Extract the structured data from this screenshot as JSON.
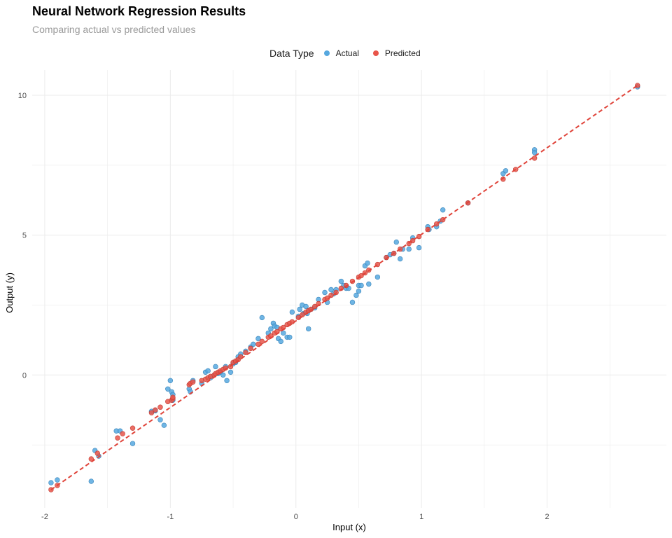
{
  "chart_data": {
    "type": "scatter",
    "title": "Neural Network Regression Results",
    "subtitle": "Comparing actual vs predicted values",
    "xlabel": "Input (x)",
    "ylabel": "Output (y)",
    "xlim": [
      -2.1,
      2.95
    ],
    "ylim": [
      -4.75,
      10.9
    ],
    "x_ticks": [
      -2,
      -1,
      0,
      1,
      2
    ],
    "y_ticks": [
      0,
      5,
      10
    ],
    "grid": true,
    "legend": {
      "title": "Data Type",
      "placement": "top-center",
      "entries": [
        "Actual",
        "Predicted"
      ]
    },
    "colors": {
      "actual": "#56a8df",
      "predicted": "#e8554a",
      "line": "#e0443a",
      "grid": "#ebebeb"
    },
    "series": [
      {
        "name": "Actual",
        "points": [
          [
            -1.95,
            -3.85
          ],
          [
            -1.9,
            -3.75
          ],
          [
            -1.63,
            -3.8
          ],
          [
            -1.6,
            -2.7
          ],
          [
            -1.57,
            -2.9
          ],
          [
            -1.43,
            -2.0
          ],
          [
            -1.4,
            -2.0
          ],
          [
            -1.3,
            -2.45
          ],
          [
            -1.15,
            -1.3
          ],
          [
            -1.12,
            -1.28
          ],
          [
            -1.08,
            -1.6
          ],
          [
            -1.05,
            -1.8
          ],
          [
            -1.0,
            -0.2
          ],
          [
            -0.99,
            -0.6
          ],
          [
            -0.98,
            -0.9
          ],
          [
            -1.02,
            -0.5
          ],
          [
            -0.98,
            -0.7
          ],
          [
            -0.85,
            -0.5
          ],
          [
            -0.84,
            -0.6
          ],
          [
            -0.82,
            -0.2
          ],
          [
            -0.75,
            -0.3
          ],
          [
            -0.72,
            0.1
          ],
          [
            -0.7,
            0.15
          ],
          [
            -0.68,
            -0.1
          ],
          [
            -0.65,
            0.0
          ],
          [
            -0.64,
            0.3
          ],
          [
            -0.62,
            0.05
          ],
          [
            -0.6,
            0.1
          ],
          [
            -0.58,
            0.0
          ],
          [
            -0.56,
            0.3
          ],
          [
            -0.55,
            -0.2
          ],
          [
            -0.52,
            0.1
          ],
          [
            -0.5,
            0.4
          ],
          [
            -0.48,
            0.45
          ],
          [
            -0.46,
            0.65
          ],
          [
            -0.44,
            0.75
          ],
          [
            -0.4,
            0.85
          ],
          [
            -0.36,
            1.0
          ],
          [
            -0.34,
            1.1
          ],
          [
            -0.3,
            1.3
          ],
          [
            -0.27,
            2.05
          ],
          [
            -0.22,
            1.5
          ],
          [
            -0.2,
            1.65
          ],
          [
            -0.18,
            1.85
          ],
          [
            -0.17,
            1.75
          ],
          [
            -0.15,
            1.7
          ],
          [
            -0.14,
            1.3
          ],
          [
            -0.12,
            1.2
          ],
          [
            -0.1,
            1.5
          ],
          [
            -0.07,
            1.35
          ],
          [
            -0.05,
            1.35
          ],
          [
            -0.03,
            2.25
          ],
          [
            0.02,
            2.1
          ],
          [
            0.03,
            2.35
          ],
          [
            0.05,
            2.5
          ],
          [
            0.06,
            2.2
          ],
          [
            0.08,
            2.45
          ],
          [
            0.09,
            2.2
          ],
          [
            0.1,
            2.3
          ],
          [
            0.1,
            1.65
          ],
          [
            0.12,
            2.35
          ],
          [
            0.15,
            2.4
          ],
          [
            0.18,
            2.7
          ],
          [
            0.23,
            2.95
          ],
          [
            0.25,
            2.6
          ],
          [
            0.28,
            3.05
          ],
          [
            0.3,
            2.9
          ],
          [
            0.32,
            3.05
          ],
          [
            0.36,
            3.35
          ],
          [
            0.38,
            3.2
          ],
          [
            0.4,
            3.1
          ],
          [
            0.42,
            3.1
          ],
          [
            0.45,
            2.6
          ],
          [
            0.48,
            2.85
          ],
          [
            0.5,
            3.0
          ],
          [
            0.5,
            3.2
          ],
          [
            0.52,
            3.2
          ],
          [
            0.55,
            3.9
          ],
          [
            0.57,
            4.0
          ],
          [
            0.58,
            3.25
          ],
          [
            0.65,
            3.5
          ],
          [
            0.72,
            4.2
          ],
          [
            0.75,
            4.3
          ],
          [
            0.78,
            4.35
          ],
          [
            0.8,
            4.75
          ],
          [
            0.83,
            4.15
          ],
          [
            0.85,
            4.5
          ],
          [
            0.9,
            4.5
          ],
          [
            0.93,
            4.9
          ],
          [
            0.98,
            4.55
          ],
          [
            1.05,
            5.3
          ],
          [
            1.06,
            5.2
          ],
          [
            1.12,
            5.3
          ],
          [
            1.15,
            5.5
          ],
          [
            1.17,
            5.9
          ],
          [
            1.37,
            6.15
          ],
          [
            1.65,
            7.2
          ],
          [
            1.67,
            7.3
          ],
          [
            1.9,
            8.05
          ],
          [
            1.9,
            7.95
          ],
          [
            2.72,
            10.3
          ]
        ]
      },
      {
        "name": "Predicted",
        "points": [
          [
            -1.95,
            -4.1
          ],
          [
            -1.9,
            -3.95
          ],
          [
            -1.63,
            -3.0
          ],
          [
            -1.58,
            -2.8
          ],
          [
            -1.42,
            -2.25
          ],
          [
            -1.38,
            -2.1
          ],
          [
            -1.3,
            -1.9
          ],
          [
            -1.15,
            -1.35
          ],
          [
            -1.12,
            -1.25
          ],
          [
            -1.08,
            -1.15
          ],
          [
            -1.02,
            -0.95
          ],
          [
            -0.99,
            -0.9
          ],
          [
            -0.98,
            -0.85
          ],
          [
            -0.98,
            -0.8
          ],
          [
            -0.85,
            -0.35
          ],
          [
            -0.84,
            -0.3
          ],
          [
            -0.82,
            -0.25
          ],
          [
            -0.75,
            -0.2
          ],
          [
            -0.72,
            -0.15
          ],
          [
            -0.7,
            -0.1
          ],
          [
            -0.68,
            -0.05
          ],
          [
            -0.65,
            0.0
          ],
          [
            -0.64,
            0.05
          ],
          [
            -0.62,
            0.1
          ],
          [
            -0.6,
            0.15
          ],
          [
            -0.58,
            0.2
          ],
          [
            -0.56,
            0.25
          ],
          [
            -0.52,
            0.3
          ],
          [
            -0.5,
            0.45
          ],
          [
            -0.48,
            0.5
          ],
          [
            -0.46,
            0.55
          ],
          [
            -0.44,
            0.65
          ],
          [
            -0.4,
            0.8
          ],
          [
            -0.36,
            0.95
          ],
          [
            -0.3,
            1.1
          ],
          [
            -0.27,
            1.2
          ],
          [
            -0.22,
            1.35
          ],
          [
            -0.2,
            1.4
          ],
          [
            -0.17,
            1.5
          ],
          [
            -0.15,
            1.55
          ],
          [
            -0.12,
            1.65
          ],
          [
            -0.1,
            1.7
          ],
          [
            -0.07,
            1.8
          ],
          [
            -0.05,
            1.85
          ],
          [
            -0.03,
            1.9
          ],
          [
            0.02,
            2.05
          ],
          [
            0.05,
            2.15
          ],
          [
            0.08,
            2.25
          ],
          [
            0.1,
            2.3
          ],
          [
            0.12,
            2.35
          ],
          [
            0.15,
            2.45
          ],
          [
            0.18,
            2.55
          ],
          [
            0.23,
            2.7
          ],
          [
            0.25,
            2.75
          ],
          [
            0.28,
            2.85
          ],
          [
            0.32,
            2.95
          ],
          [
            0.36,
            3.1
          ],
          [
            0.4,
            3.2
          ],
          [
            0.45,
            3.35
          ],
          [
            0.5,
            3.5
          ],
          [
            0.52,
            3.55
          ],
          [
            0.55,
            3.65
          ],
          [
            0.58,
            3.75
          ],
          [
            0.65,
            3.95
          ],
          [
            0.72,
            4.2
          ],
          [
            0.78,
            4.35
          ],
          [
            0.83,
            4.5
          ],
          [
            0.9,
            4.7
          ],
          [
            0.93,
            4.8
          ],
          [
            0.98,
            4.95
          ],
          [
            1.05,
            5.2
          ],
          [
            1.12,
            5.4
          ],
          [
            1.17,
            5.55
          ],
          [
            1.37,
            6.15
          ],
          [
            1.65,
            7.0
          ],
          [
            1.75,
            7.35
          ],
          [
            1.9,
            7.75
          ],
          [
            2.72,
            10.35
          ]
        ]
      }
    ],
    "fit_line": {
      "x": [
        -1.95,
        2.72
      ],
      "y": [
        -4.1,
        10.35
      ],
      "style": "dashed"
    }
  }
}
